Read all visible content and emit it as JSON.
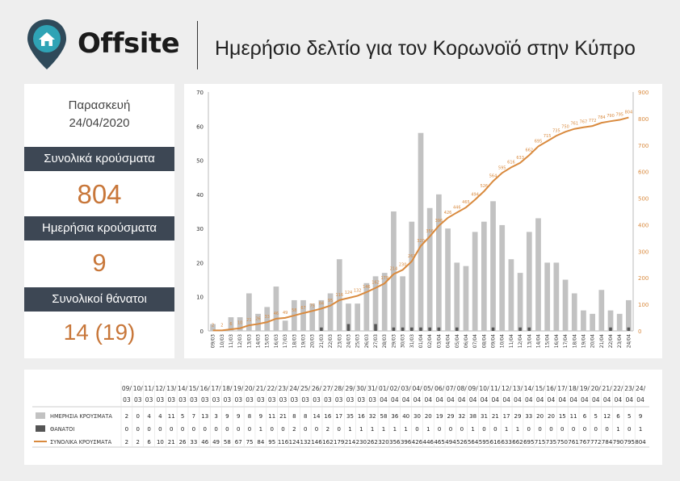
{
  "header": {
    "logo_text": "Offsite",
    "title": "Ημερήσιο δελτίο για τον Κορωνοϊό στην Κύπρο"
  },
  "summary": {
    "day": "Παρασκευή",
    "date": "24/04/2020",
    "total_label": "Συνολικά κρούσματα",
    "total_value": "804",
    "daily_label": "Ημερήσια κρούσματα",
    "daily_value": "9",
    "deaths_label": "Συνολικοί θάνατοι",
    "deaths_value": "14 (19)"
  },
  "colors": {
    "bar_cases": "#c2c2c2",
    "bar_deaths": "#555555",
    "line_total": "#d98a3e",
    "label_bg": "#3d4754",
    "value_text": "#c8773a"
  },
  "chart_data": {
    "type": "bar",
    "categories": [
      "09/03",
      "10/03",
      "11/03",
      "12/03",
      "13/03",
      "14/03",
      "15/03",
      "16/03",
      "17/03",
      "18/03",
      "19/03",
      "20/03",
      "21/03",
      "22/03",
      "23/03",
      "24/03",
      "25/03",
      "26/03",
      "27/03",
      "28/03",
      "29/03",
      "30/03",
      "31/03",
      "01/04",
      "02/04",
      "03/04",
      "04/04",
      "05/04",
      "06/04",
      "07/04",
      "08/04",
      "09/04",
      "10/04",
      "11/04",
      "12/04",
      "13/04",
      "14/04",
      "15/04",
      "16/04",
      "17/04",
      "18/04",
      "19/04",
      "20/04",
      "21/04",
      "22/04",
      "23/04",
      "24/04"
    ],
    "series": [
      {
        "name": "ΗΜΕΡΗΣΙΑ ΚΡΟΥΣΜΑΤΑ",
        "axis": "left",
        "values": [
          2,
          0,
          4,
          4,
          11,
          5,
          7,
          13,
          3,
          9,
          9,
          8,
          9,
          11,
          21,
          8,
          8,
          14,
          16,
          17,
          35,
          16,
          32,
          58,
          36,
          40,
          30,
          20,
          19,
          29,
          32,
          38,
          31,
          21,
          17,
          29,
          33,
          20,
          20,
          15,
          11,
          6,
          5,
          12,
          6,
          5,
          9
        ]
      },
      {
        "name": "ΘΑΝΑΤΟΙ",
        "axis": "left",
        "values": [
          0,
          0,
          0,
          0,
          0,
          0,
          0,
          0,
          0,
          0,
          0,
          0,
          1,
          0,
          0,
          2,
          0,
          0,
          2,
          0,
          1,
          1,
          1,
          1,
          1,
          1,
          0,
          1,
          0,
          0,
          0,
          1,
          0,
          0,
          1,
          1,
          0,
          0,
          0,
          0,
          0,
          0,
          0,
          0,
          1,
          0,
          1
        ]
      },
      {
        "name": "ΣΥΝΟΛΙΚΑ ΚΡΟΥΣΜΑΤΑ",
        "axis": "right",
        "type": "line",
        "values": [
          2,
          2,
          6,
          10,
          21,
          26,
          33,
          46,
          49,
          58,
          67,
          75,
          84,
          95,
          116,
          124,
          132,
          146,
          162,
          179,
          214,
          230,
          262,
          320,
          356,
          396,
          426,
          446,
          465,
          494,
          526,
          564,
          595,
          616,
          633,
          662,
          695,
          715,
          735,
          750,
          761,
          767,
          772,
          784,
          790,
          795,
          804
        ]
      }
    ],
    "y_left": {
      "min": 0,
      "max": 70,
      "ticks": [
        0,
        10,
        20,
        30,
        40,
        50,
        60,
        70
      ]
    },
    "y_right": {
      "min": 0,
      "max": 900,
      "ticks": [
        0,
        100,
        200,
        300,
        400,
        500,
        600,
        700,
        800,
        900
      ]
    },
    "grid": false
  },
  "table": {
    "dates": [
      "09/03",
      "10/03",
      "11/03",
      "12/03",
      "13/03",
      "14/03",
      "15/03",
      "16/03",
      "17/03",
      "18/03",
      "19/03",
      "20/03",
      "21/03",
      "22/03",
      "23/03",
      "24/03",
      "25/03",
      "26/03",
      "27/03",
      "28/03",
      "29/03",
      "30/03",
      "31/03",
      "01/04",
      "02/04",
      "03/04",
      "04/04",
      "05/04",
      "06/04",
      "07/04",
      "08/04",
      "09/04",
      "10/04",
      "11/04",
      "12/04",
      "13/04",
      "14/04",
      "15/04",
      "16/04",
      "17/04",
      "18/04",
      "19/04",
      "20/04",
      "21/04",
      "22/04",
      "23/04",
      "24/04"
    ]
  }
}
